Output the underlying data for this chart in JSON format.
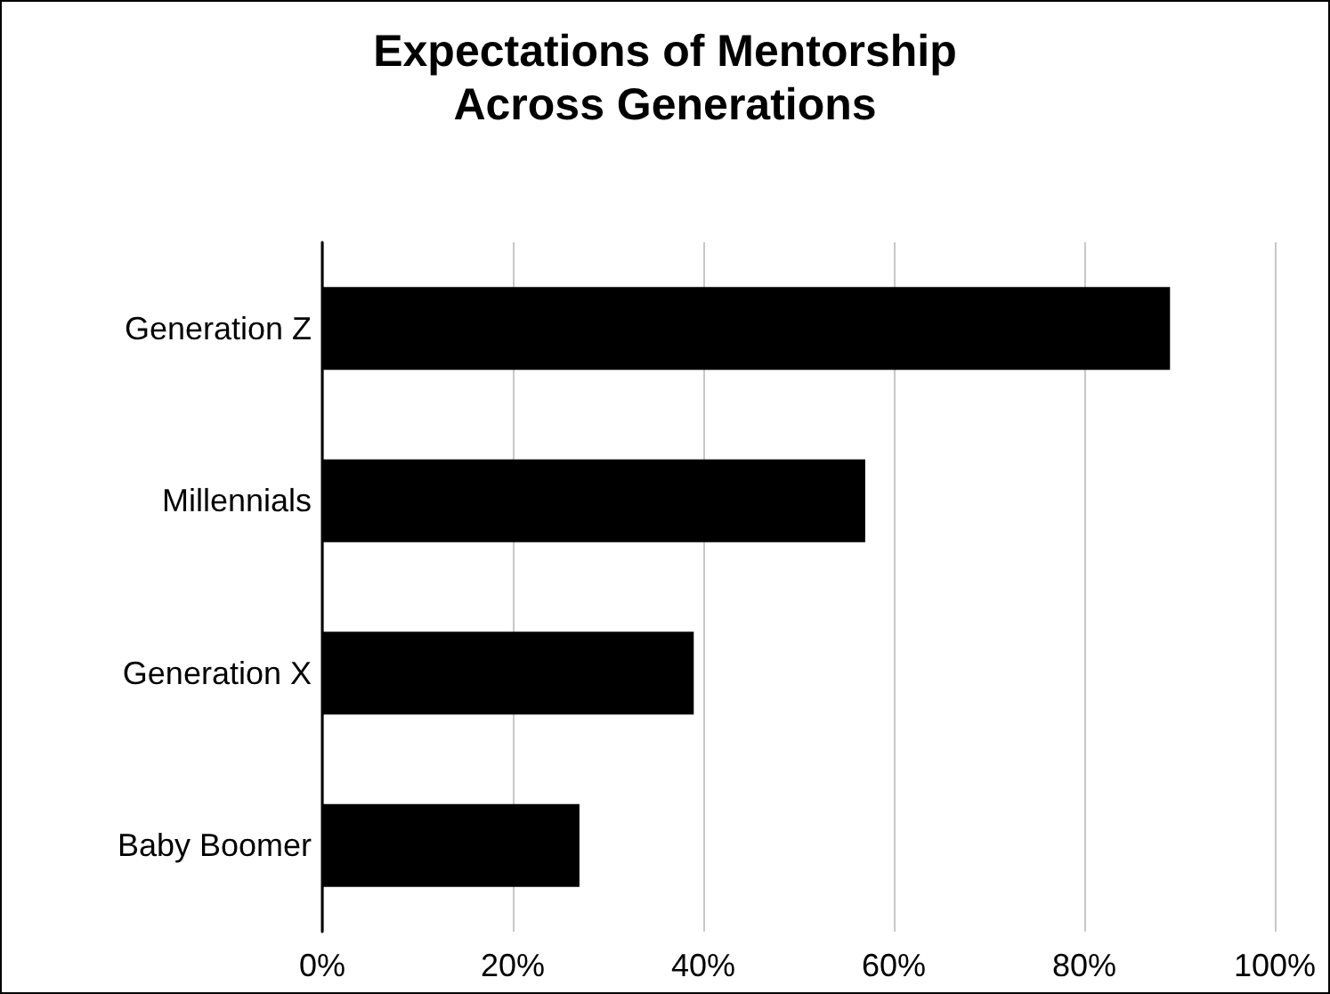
{
  "chart_data": {
    "type": "bar",
    "orientation": "horizontal",
    "title": "Expectations of Mentorship\nAcross Generations",
    "categories": [
      "Generation Z",
      "Millennials",
      "Generation X",
      "Baby Boomer"
    ],
    "values": [
      89,
      57,
      39,
      27
    ],
    "color": "#000000",
    "xlim": [
      0,
      100
    ],
    "xticks": [
      {
        "value": 0,
        "label": "0%"
      },
      {
        "value": 20,
        "label": "20%"
      },
      {
        "value": 40,
        "label": "40%"
      },
      {
        "value": 60,
        "label": "60%"
      },
      {
        "value": 80,
        "label": "80%"
      },
      {
        "value": 100,
        "label": "100%"
      }
    ],
    "grid": "x"
  }
}
